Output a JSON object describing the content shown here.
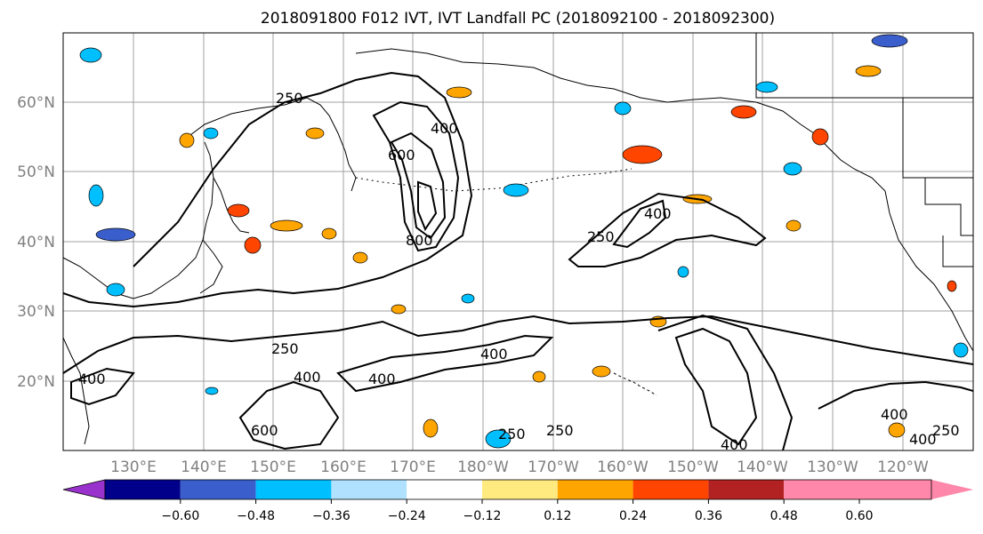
{
  "title": "2018091800 F012 IVT, IVT Landfall PC (2018092100 - 2018092300)",
  "map": {
    "lat_labels": [
      "60°N",
      "50°N",
      "40°N",
      "30°N",
      "20°N"
    ],
    "lon_labels": [
      "130°E",
      "140°E",
      "150°E",
      "160°E",
      "170°E",
      "180°W",
      "170°W",
      "160°W",
      "150°W",
      "140°W",
      "130°W",
      "120°W"
    ],
    "contour_labels": [
      "250",
      "400",
      "600",
      "800",
      "250",
      "400",
      "250",
      "400",
      "400",
      "400",
      "600",
      "250",
      "400",
      "250",
      "400",
      "400",
      "250",
      "400"
    ],
    "contour_color": "#000000",
    "land_line_color": "#000000"
  },
  "colorbar": {
    "ticks": [
      "−0.60",
      "−0.48",
      "−0.36",
      "−0.24",
      "−0.12",
      "0.12",
      "0.24",
      "0.36",
      "0.48",
      "0.60"
    ],
    "colors": [
      "#9932cc",
      "#00008b",
      "#3a5fcd",
      "#00bfff",
      "#b0e2ff",
      "#ffffff",
      "#ffea80",
      "#ffa500",
      "#ff4500",
      "#b22222",
      "#ff88aa"
    ]
  }
}
